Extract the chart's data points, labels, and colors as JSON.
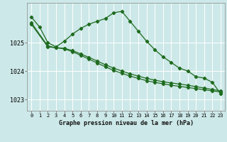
{
  "xlabel": "Graphe pression niveau de la mer (hPa)",
  "bg_color": "#cde8e8",
  "grid_color": "#b8d8d8",
  "line_color": "#1e6b1e",
  "ylim": [
    1022.6,
    1026.4
  ],
  "xlim": [
    -0.5,
    23.5
  ],
  "yticks": [
    1023,
    1024,
    1025
  ],
  "xticks": [
    0,
    1,
    2,
    3,
    4,
    5,
    6,
    7,
    8,
    9,
    10,
    11,
    12,
    13,
    14,
    15,
    16,
    17,
    18,
    19,
    20,
    21,
    22,
    23
  ],
  "line1_x": [
    0,
    1,
    2,
    3,
    4,
    5,
    6,
    7,
    8,
    9,
    10,
    11,
    12,
    13,
    14,
    15,
    16,
    17,
    18,
    19,
    20,
    21,
    22,
    23
  ],
  "line1_y": [
    1025.9,
    1025.55,
    1025.0,
    1024.85,
    1025.05,
    1025.3,
    1025.5,
    1025.65,
    1025.75,
    1025.85,
    1026.05,
    1026.1,
    1025.75,
    1025.4,
    1025.05,
    1024.75,
    1024.5,
    1024.3,
    1024.1,
    1024.0,
    1023.8,
    1023.75,
    1023.6,
    1023.2
  ],
  "line2_x": [
    0,
    2,
    3,
    4,
    5,
    6,
    7,
    8,
    9,
    10,
    11,
    12,
    13,
    14,
    15,
    16,
    17,
    18,
    19,
    20,
    21,
    22,
    23
  ],
  "line2_y": [
    1025.65,
    1024.85,
    1024.82,
    1024.8,
    1024.72,
    1024.6,
    1024.48,
    1024.35,
    1024.22,
    1024.1,
    1024.0,
    1023.9,
    1023.82,
    1023.74,
    1023.68,
    1023.62,
    1023.58,
    1023.54,
    1023.5,
    1023.45,
    1023.4,
    1023.35,
    1023.3
  ],
  "line3_x": [
    0,
    2,
    3,
    4,
    5,
    6,
    7,
    8,
    9,
    10,
    11,
    12,
    13,
    14,
    15,
    16,
    17,
    18,
    19,
    20,
    21,
    22,
    23
  ],
  "line3_y": [
    1025.7,
    1024.88,
    1024.82,
    1024.78,
    1024.68,
    1024.55,
    1024.42,
    1024.28,
    1024.15,
    1024.02,
    1023.92,
    1023.82,
    1023.74,
    1023.66,
    1023.6,
    1023.55,
    1023.5,
    1023.46,
    1023.42,
    1023.38,
    1023.34,
    1023.3,
    1023.26
  ]
}
